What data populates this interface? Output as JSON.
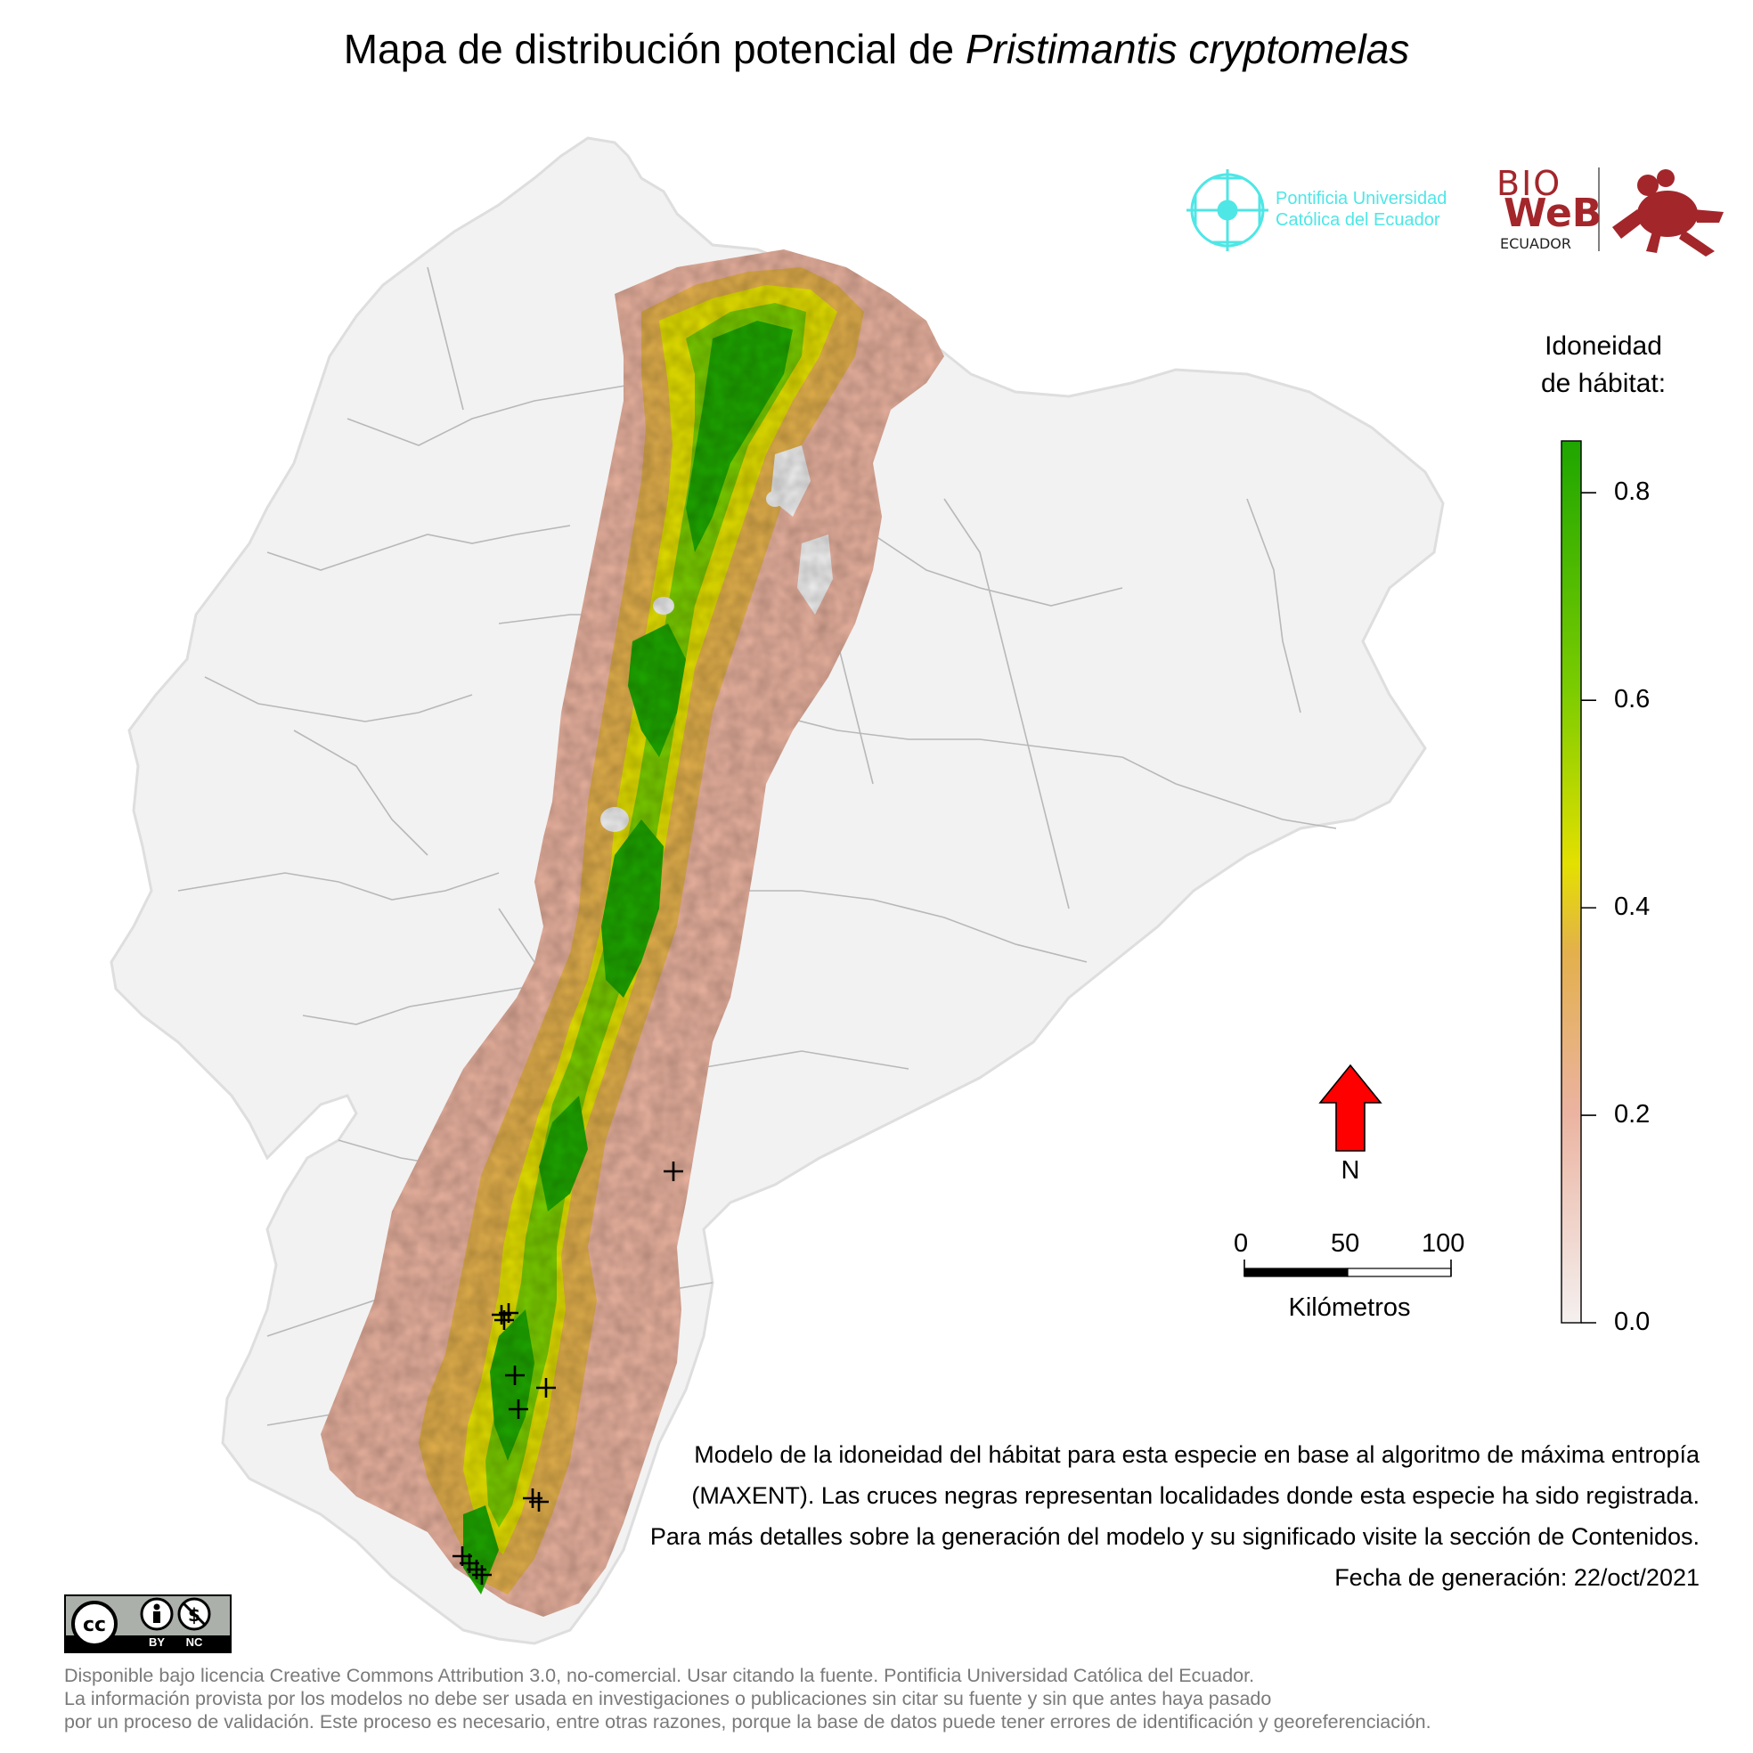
{
  "title": {
    "prefix": "Mapa de distribución potencial de ",
    "species": "Pristimantis cryptomelas"
  },
  "logos": {
    "puce_line1": "Pontificia Universidad",
    "puce_line2": "Católica del Ecuador",
    "bioweb_top": "BIO",
    "bioweb_mid": "WeB",
    "bioweb_bottom": "ECUADOR"
  },
  "legend": {
    "title_line1": "Idoneidad",
    "title_line2": "de hábitat:",
    "ticks": [
      "0.0",
      "0.2",
      "0.4",
      "0.6",
      "0.8"
    ],
    "tick_values": [
      0.0,
      0.2,
      0.4,
      0.6,
      0.8
    ],
    "range": [
      0.0,
      0.85
    ],
    "colors": [
      "#f2f2f2",
      "#ebb3a0",
      "#e3b04c",
      "#e4e000",
      "#7acc00",
      "#1ea600"
    ]
  },
  "north_arrow": {
    "label": "N",
    "color": "#ff0000"
  },
  "scale_bar": {
    "labels": [
      "0",
      "50",
      "100"
    ],
    "unit": "Kilómetros"
  },
  "occurrence_marker": "cross-icon",
  "description": "Modelo de la idoneidad del hábitat para esta especie en base al algoritmo de máxima entropía (MAXENT). Las cruces negras representan localidades donde esta especie ha sido registrada. Para más detalles sobre la generación del modelo y su significado visite la sección de Contenidos. Fecha de generación: 22/oct/2021",
  "license": {
    "badge_by": "BY",
    "badge_nc": "NC",
    "line1": "Disponible bajo licencia Creative Commons Attribution 3.0, no-comercial. Usar citando la fuente. Pontificia Universidad Católica del Ecuador.",
    "line2": "La información provista por los modelos no debe ser usada en investigaciones o publicaciones sin citar su fuente y sin que antes haya pasado",
    "line3": "por un proceso de validación. Este proceso es necesario, entre otras razones, porque la base de datos puede tener errores de identificación y georeferenciación."
  }
}
